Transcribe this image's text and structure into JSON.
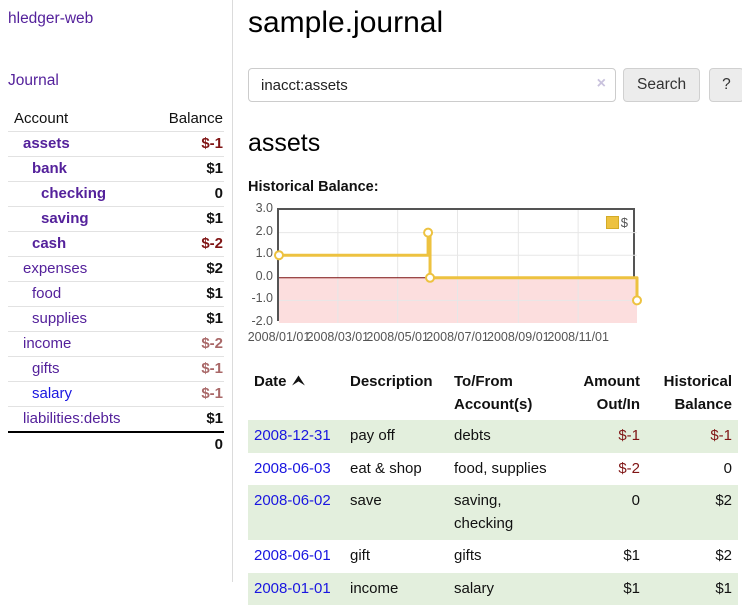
{
  "app": {
    "title": "hledger-web",
    "nav_journal": "Journal"
  },
  "colors": {
    "link_purple": "#54219b",
    "link_blue": "#1a16e0",
    "negative_strong": "#7f1414",
    "negative_soft": "#a96868",
    "row_stripe_green": "#e3efdd",
    "button_gray": "#ececec"
  },
  "sidebar": {
    "header": {
      "account": "Account",
      "balance": "Balance"
    },
    "accounts": [
      {
        "name": "assets",
        "depth": 1,
        "bold": true,
        "link": "purple",
        "balance": "$-1",
        "tone": "neg-strong"
      },
      {
        "name": "bank",
        "depth": 2,
        "bold": true,
        "link": "purple",
        "balance": "$1",
        "tone": "pos"
      },
      {
        "name": "checking",
        "depth": 3,
        "bold": true,
        "link": "purple",
        "balance": "0",
        "tone": "pos"
      },
      {
        "name": "saving",
        "depth": 3,
        "bold": true,
        "link": "purple",
        "balance": "$1",
        "tone": "pos"
      },
      {
        "name": "cash",
        "depth": 2,
        "bold": true,
        "link": "purple",
        "balance": "$-2",
        "tone": "neg-strong"
      },
      {
        "name": "expenses",
        "depth": 1,
        "bold": false,
        "link": "purple",
        "balance": "$2",
        "tone": "pos"
      },
      {
        "name": "food",
        "depth": 2,
        "bold": false,
        "link": "purple",
        "balance": "$1",
        "tone": "pos"
      },
      {
        "name": "supplies",
        "depth": 2,
        "bold": false,
        "link": "purple",
        "balance": "$1",
        "tone": "pos"
      },
      {
        "name": "income",
        "depth": 1,
        "bold": false,
        "link": "purple",
        "balance": "$-2",
        "tone": "neg-soft"
      },
      {
        "name": "gifts",
        "depth": 2,
        "bold": false,
        "link": "purple",
        "balance": "$-1",
        "tone": "neg-soft"
      },
      {
        "name": "salary",
        "depth": 2,
        "bold": false,
        "link": "blue",
        "balance": "$-1",
        "tone": "neg-soft"
      },
      {
        "name": "liabilities:debts",
        "depth": 1,
        "bold": false,
        "link": "purple",
        "balance": "$1",
        "tone": "pos"
      }
    ],
    "total": "0"
  },
  "main": {
    "title": "sample.journal",
    "search": {
      "value": "inacct:assets",
      "clear_label": "×",
      "button_label": "Search",
      "help_label": "?"
    },
    "account_heading": "assets",
    "chart_label": "Historical Balance:"
  },
  "chart_data": {
    "type": "line",
    "line_style": "step",
    "title": "Historical Balance:",
    "x_range": [
      "2008-01-01",
      "2008-12-31"
    ],
    "ylim": [
      -2,
      3
    ],
    "yticks": [
      {
        "label": "3.0",
        "value": 3
      },
      {
        "label": "2.0",
        "value": 2
      },
      {
        "label": "1.0",
        "value": 1
      },
      {
        "label": "0.0",
        "value": 0
      },
      {
        "label": "-1.0",
        "value": -1
      },
      {
        "label": "-2.0",
        "value": -2
      }
    ],
    "xticks": [
      {
        "label": "2008/01/01",
        "date": "2008-01-01"
      },
      {
        "label": "2008/03/01",
        "date": "2008-03-01"
      },
      {
        "label": "2008/05/01",
        "date": "2008-05-01"
      },
      {
        "label": "2008/07/01",
        "date": "2008-07-01"
      },
      {
        "label": "2008/09/01",
        "date": "2008-09-01"
      },
      {
        "label": "2008/11/01",
        "date": "2008-11-01"
      }
    ],
    "series": [
      {
        "name": "$",
        "points": [
          {
            "date": "2008-01-01",
            "value": 1
          },
          {
            "date": "2008-06-01",
            "value": 2
          },
          {
            "date": "2008-06-03",
            "value": 0
          },
          {
            "date": "2008-12-31",
            "value": -1
          }
        ]
      }
    ],
    "legend": {
      "label": "$",
      "position": "top-right"
    },
    "grid": true,
    "colors": {
      "series": "#EDC240",
      "negative_region": "#fcdede",
      "zero_line": "#7a0d0d",
      "grid": "#e7e7e7",
      "axis_text": "#545454"
    }
  },
  "table": {
    "headers": [
      "Date",
      "Description",
      "To/From Account(s)",
      "Amount Out/In",
      "Historical Balance"
    ],
    "sort": {
      "column": "Date",
      "direction": "ascending"
    },
    "rows": [
      {
        "date": "2008-12-31",
        "description": "pay off",
        "accounts": "debts",
        "amount": "$-1",
        "amount_tone": "neg",
        "balance": "$-1",
        "balance_tone": "neg"
      },
      {
        "date": "2008-06-03",
        "description": "eat & shop",
        "accounts": "food, supplies",
        "amount": "$-2",
        "amount_tone": "neg",
        "balance": "0",
        "balance_tone": "pos"
      },
      {
        "date": "2008-06-02",
        "description": "save",
        "accounts": "saving, checking",
        "amount": "0",
        "amount_tone": "pos",
        "balance": "$2",
        "balance_tone": "pos"
      },
      {
        "date": "2008-06-01",
        "description": "gift",
        "accounts": "gifts",
        "amount": "$1",
        "amount_tone": "pos",
        "balance": "$2",
        "balance_tone": "pos"
      },
      {
        "date": "2008-01-01",
        "description": "income",
        "accounts": "salary",
        "amount": "$1",
        "amount_tone": "pos",
        "balance": "$1",
        "balance_tone": "pos"
      }
    ]
  }
}
